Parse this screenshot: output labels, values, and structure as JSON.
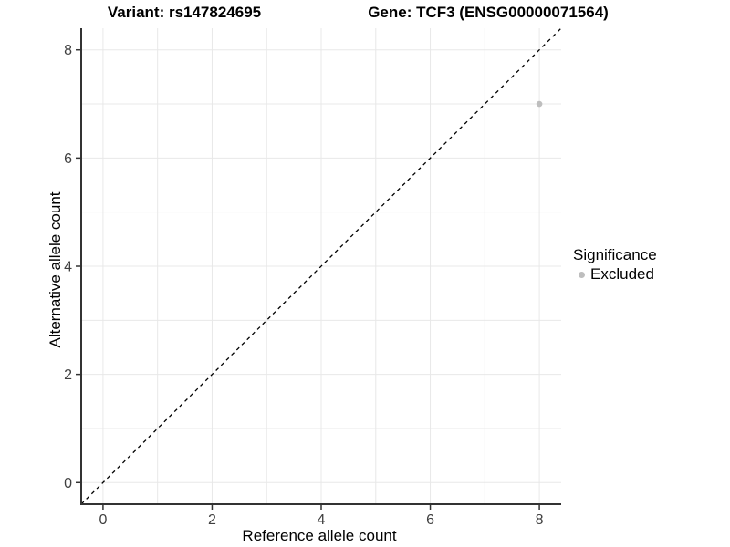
{
  "chart_data": {
    "type": "scatter",
    "titles": {
      "left": "Variant: rs147824695",
      "right": "Gene: TCF3 (ENSG00000071564)"
    },
    "xlabel": "Reference allele count",
    "ylabel": "Alternative allele count",
    "xlim": [
      -0.4,
      8.4
    ],
    "ylim": [
      -0.4,
      8.4
    ],
    "xticks": [
      0,
      2,
      4,
      6,
      8
    ],
    "yticks": [
      0,
      2,
      4,
      6,
      8
    ],
    "grid": {
      "show": true,
      "x_lines": [
        0,
        1,
        2,
        3,
        4,
        5,
        6,
        7,
        8
      ],
      "y_lines": [
        0,
        1,
        2,
        3,
        4,
        5,
        6,
        7,
        8
      ]
    },
    "reference_line": {
      "slope": 1,
      "intercept": 0,
      "linetype": "dashed",
      "color": "#000000"
    },
    "series": [
      {
        "name": "Excluded",
        "color": "#bebebe",
        "points": [
          {
            "x": 8,
            "y": 7
          }
        ]
      }
    ],
    "legend": {
      "title": "Significance",
      "position": "right",
      "entries": [
        {
          "label": "Excluded",
          "color": "#bebebe"
        }
      ]
    }
  },
  "style": {
    "background": "#ffffff",
    "grid_color": "#e8e8e8",
    "axis_color": "#333333",
    "tick_label_color": "#404040",
    "text_color": "#000000",
    "point_color": "#bebebe"
  }
}
